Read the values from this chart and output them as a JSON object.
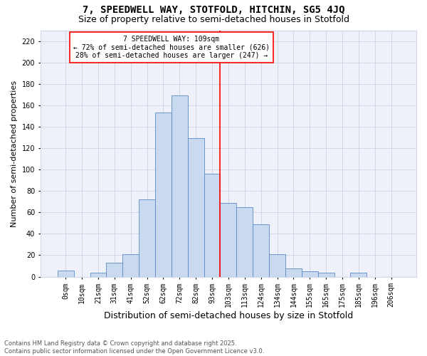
{
  "title": "7, SPEEDWELL WAY, STOTFOLD, HITCHIN, SG5 4JQ",
  "subtitle": "Size of property relative to semi-detached houses in Stotfold",
  "xlabel": "Distribution of semi-detached houses by size in Stotfold",
  "ylabel": "Number of semi-detached properties",
  "categories": [
    "0sqm",
    "10sqm",
    "21sqm",
    "31sqm",
    "41sqm",
    "52sqm",
    "62sqm",
    "72sqm",
    "82sqm",
    "93sqm",
    "103sqm",
    "113sqm",
    "124sqm",
    "134sqm",
    "144sqm",
    "155sqm",
    "165sqm",
    "175sqm",
    "185sqm",
    "196sqm",
    "206sqm"
  ],
  "values": [
    6,
    0,
    4,
    13,
    21,
    72,
    153,
    169,
    129,
    96,
    69,
    65,
    49,
    21,
    8,
    5,
    4,
    0,
    4,
    0,
    0
  ],
  "bar_color": "#c9d9f0",
  "bar_edge_color": "#5a8ac6",
  "vline_x": 9.5,
  "vline_color": "red",
  "annotation_text": "7 SPEEDWELL WAY: 109sqm\n← 72% of semi-detached houses are smaller (626)\n28% of semi-detached houses are larger (247) →",
  "annotation_box_color": "red",
  "annotation_text_color": "black",
  "ylim": [
    0,
    230
  ],
  "yticks": [
    0,
    20,
    40,
    60,
    80,
    100,
    120,
    140,
    160,
    180,
    200,
    220
  ],
  "grid_color": "#d0d8e8",
  "background_color": "#eef1fa",
  "footer": "Contains HM Land Registry data © Crown copyright and database right 2025.\nContains public sector information licensed under the Open Government Licence v3.0.",
  "title_fontsize": 10,
  "subtitle_fontsize": 9,
  "xlabel_fontsize": 9,
  "ylabel_fontsize": 8,
  "tick_fontsize": 7,
  "annotation_fontsize": 7,
  "footer_fontsize": 6
}
